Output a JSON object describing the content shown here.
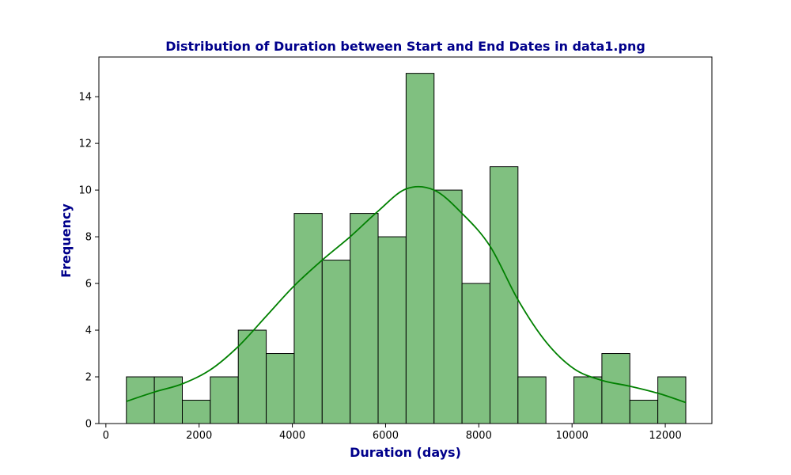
{
  "chart_data": {
    "type": "bar",
    "title": "Distribution of Duration between Start and End Dates in data1.png",
    "xlabel": "Duration (days)",
    "ylabel": "Frequency",
    "xlim": [
      -150,
      13000
    ],
    "ylim": [
      0,
      15.7
    ],
    "xticks": [
      0,
      2000,
      4000,
      6000,
      8000,
      10000,
      12000
    ],
    "yticks": [
      0,
      2,
      4,
      6,
      8,
      10,
      12,
      14
    ],
    "bin_edges": [
      440,
      1040,
      1640,
      2240,
      2840,
      3440,
      4040,
      4640,
      5240,
      5840,
      6440,
      7040,
      7640,
      8240,
      8840,
      9440,
      10040,
      10640,
      11240,
      11840,
      12440
    ],
    "values": [
      2,
      2,
      1,
      2,
      4,
      3,
      9,
      7,
      9,
      8,
      15,
      10,
      6,
      11,
      2,
      0,
      2,
      3,
      1,
      2
    ],
    "kde": {
      "x": [
        440,
        1040,
        1640,
        2240,
        2840,
        3440,
        4040,
        4640,
        5240,
        5840,
        6440,
        7040,
        7640,
        8240,
        8840,
        9440,
        10040,
        10640,
        11240,
        11840,
        12440
      ],
      "y": [
        0.95,
        1.35,
        1.7,
        2.3,
        3.3,
        4.6,
        5.9,
        7.0,
        8.0,
        9.1,
        10.05,
        10.0,
        9.0,
        7.6,
        5.3,
        3.5,
        2.35,
        1.85,
        1.6,
        1.3,
        0.9
      ]
    },
    "grid": false,
    "colors": {
      "bar_fill": "#80c080",
      "bar_edge": "#000000",
      "kde_line": "#008000",
      "title": "#00008b"
    }
  }
}
